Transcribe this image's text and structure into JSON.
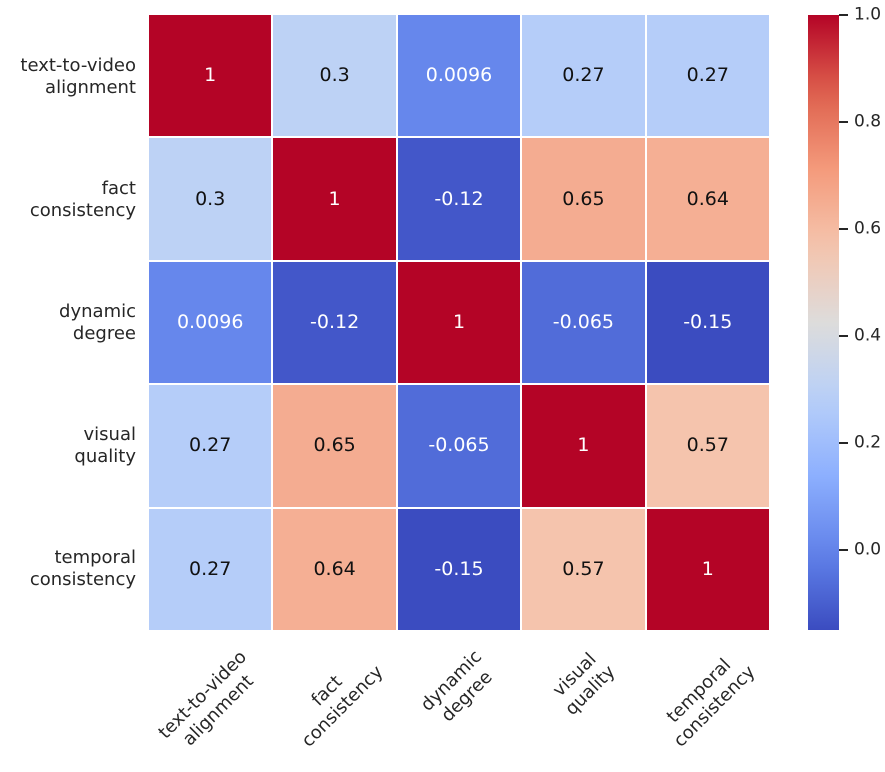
{
  "chart_data": {
    "type": "heatmap",
    "title": "",
    "xlabel": "",
    "ylabel": "",
    "categories": [
      "text-to-video alignment",
      "fact consistency",
      "dynamic degree",
      "visual quality",
      "temporal consistency"
    ],
    "category_lines": [
      [
        "text-to-video",
        "alignment"
      ],
      [
        "fact",
        "consistency"
      ],
      [
        "dynamic",
        "degree"
      ],
      [
        "visual",
        "quality"
      ],
      [
        "temporal",
        "consistency"
      ]
    ],
    "matrix": [
      [
        1,
        0.3,
        0.0096,
        0.27,
        0.27
      ],
      [
        0.3,
        1,
        -0.12,
        0.65,
        0.64
      ],
      [
        0.0096,
        -0.12,
        1,
        -0.065,
        -0.15
      ],
      [
        0.27,
        0.65,
        -0.065,
        1,
        0.57
      ],
      [
        0.27,
        0.64,
        -0.15,
        0.57,
        1
      ]
    ],
    "cell_labels": [
      [
        "1",
        "0.3",
        "0.0096",
        "0.27",
        "0.27"
      ],
      [
        "0.3",
        "1",
        "-0.12",
        "0.65",
        "0.64"
      ],
      [
        "0.0096",
        "-0.12",
        "1",
        "-0.065",
        "-0.15"
      ],
      [
        "0.27",
        "0.65",
        "-0.065",
        "1",
        "0.57"
      ],
      [
        "0.27",
        "0.64",
        "-0.15",
        "0.57",
        "1"
      ]
    ],
    "colormap": "coolwarm",
    "vmin": -0.15,
    "vmax": 1.0,
    "colorbar_position": "right",
    "colorbar_ticks": [
      {
        "value": 1.0,
        "label": "1.0"
      },
      {
        "value": 0.8,
        "label": "0.8"
      },
      {
        "value": 0.6,
        "label": "0.6"
      },
      {
        "value": 0.4,
        "label": "0.4"
      },
      {
        "value": 0.2,
        "label": "0.2"
      },
      {
        "value": 0.0,
        "label": "0.0"
      }
    ],
    "grid": "white cell separators",
    "legend_position": "none"
  },
  "colors": {
    "background": "#ffffff",
    "label_text": "#262626",
    "annotation_dark": "#111111",
    "annotation_light": "#ffffff",
    "colormap_min": "#3b4cc0",
    "colormap_mid": "#dddcdb",
    "colormap_max": "#b40426"
  }
}
